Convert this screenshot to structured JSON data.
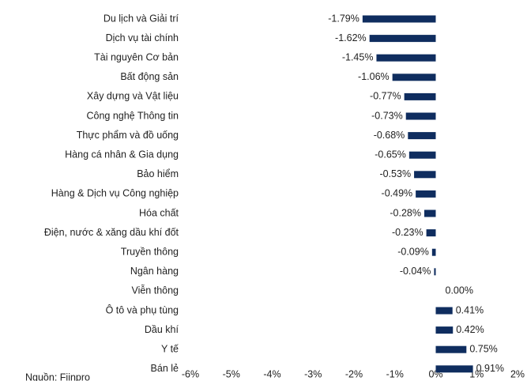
{
  "chart_data": {
    "type": "bar",
    "orientation": "horizontal",
    "categories": [
      "Du lịch và Giải trí",
      "Dịch vụ tài chính",
      "Tài nguyên Cơ bản",
      "Bất động sản",
      "Xây dựng và Vật liệu",
      "Công nghệ Thông tin",
      "Thực phẩm và đồ uống",
      "Hàng cá nhân & Gia dụng",
      "Bảo hiểm",
      "Hàng & Dịch vụ Công nghiệp",
      "Hóa chất",
      "Điện, nước & xăng dầu khí đốt",
      "Truyền thông",
      "Ngân hàng",
      "Viễn thông",
      "Ô tô và phụ tùng",
      "Dầu khí",
      "Y tế",
      "Bán lẻ"
    ],
    "values": [
      -1.79,
      -1.62,
      -1.45,
      -1.06,
      -0.77,
      -0.73,
      -0.68,
      -0.65,
      -0.53,
      -0.49,
      -0.28,
      -0.23,
      -0.09,
      -0.04,
      0.0,
      0.41,
      0.42,
      0.75,
      0.91
    ],
    "value_labels": [
      "-1.79%",
      "-1.62%",
      "-1.45%",
      "-1.06%",
      "-0.77%",
      "-0.73%",
      "-0.68%",
      "-0.65%",
      "-0.53%",
      "-0.49%",
      "-0.28%",
      "-0.23%",
      "-0.09%",
      "-0.04%",
      "0.00%",
      "0.41%",
      "0.42%",
      "0.75%",
      "0.91%"
    ],
    "color": "#0f2d5f",
    "xlim": [
      -6,
      2
    ],
    "xticks": [
      {
        "value": -6,
        "label": "-6%"
      },
      {
        "value": -5,
        "label": "-5%"
      },
      {
        "value": -4,
        "label": "-4%"
      },
      {
        "value": -3,
        "label": "-3%"
      },
      {
        "value": -2,
        "label": "-2%"
      },
      {
        "value": -1,
        "label": "-1%"
      },
      {
        "value": 0,
        "label": "0%"
      },
      {
        "value": 1,
        "label": "1%"
      },
      {
        "value": 2,
        "label": "2%"
      }
    ],
    "source": "Nguồn: Fiinpro"
  }
}
